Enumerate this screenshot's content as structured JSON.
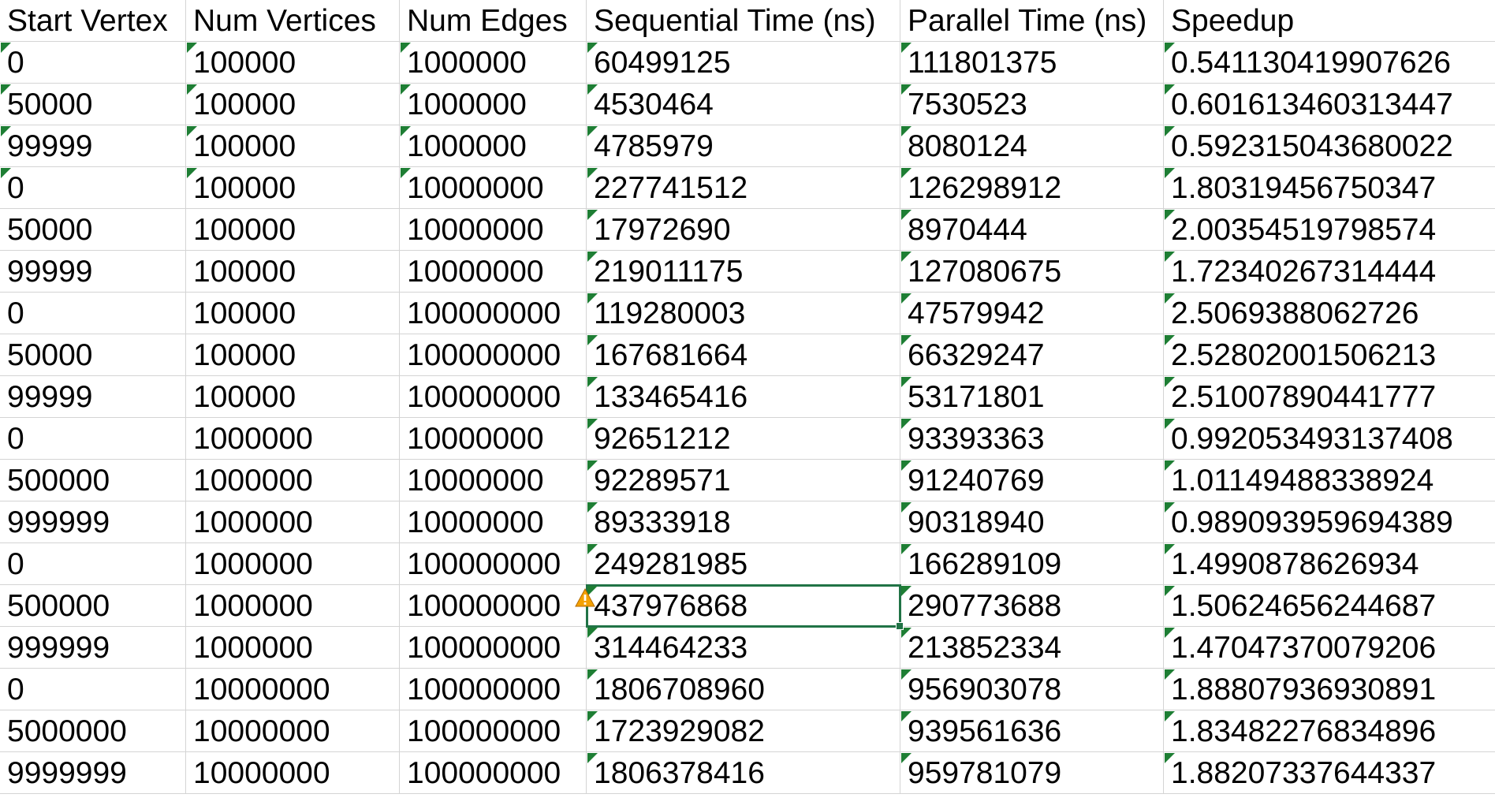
{
  "headers": [
    "Start Vertex",
    "Num Vertices",
    "Num Edges",
    "Sequential Time (ns)",
    "Parallel Time (ns)",
    "Speedup"
  ],
  "rows": [
    [
      "0",
      "100000",
      "1000000",
      "60499125",
      "111801375",
      "0.541130419907626"
    ],
    [
      "50000",
      "100000",
      "1000000",
      "4530464",
      "7530523",
      "0.601613460313447"
    ],
    [
      "99999",
      "100000",
      "1000000",
      "4785979",
      "8080124",
      "0.592315043680022"
    ],
    [
      "0",
      "100000",
      "10000000",
      "227741512",
      "126298912",
      "1.80319456750347"
    ],
    [
      "50000",
      "100000",
      "10000000",
      "17972690",
      "8970444",
      "2.00354519798574"
    ],
    [
      "99999",
      "100000",
      "10000000",
      "219011175",
      "127080675",
      "1.72340267314444"
    ],
    [
      "0",
      "100000",
      "100000000",
      "119280003",
      "47579942",
      "2.5069388062726"
    ],
    [
      "50000",
      "100000",
      "100000000",
      "167681664",
      "66329247",
      "2.52802001506213"
    ],
    [
      "99999",
      "100000",
      "100000000",
      "133465416",
      "53171801",
      "2.51007890441777"
    ],
    [
      "0",
      "1000000",
      "10000000",
      "92651212",
      "93393363",
      "0.992053493137408"
    ],
    [
      "500000",
      "1000000",
      "10000000",
      "92289571",
      "91240769",
      "1.01149488338924"
    ],
    [
      "999999",
      "1000000",
      "10000000",
      "89333918",
      "90318940",
      "0.989093959694389"
    ],
    [
      "0",
      "1000000",
      "100000000",
      "249281985",
      "166289109",
      "1.4990878626934"
    ],
    [
      "500000",
      "1000000",
      "100000000",
      "437976868",
      "290773688",
      "1.50624656244687"
    ],
    [
      "999999",
      "1000000",
      "100000000",
      "314464233",
      "213852334",
      "1.47047370079206"
    ],
    [
      "0",
      "10000000",
      "100000000",
      "1806708960",
      "956903078",
      "1.88807936930891"
    ],
    [
      "5000000",
      "10000000",
      "100000000",
      "1723929082",
      "939561636",
      "1.83482276834896"
    ],
    [
      "9999999",
      "10000000",
      "100000000",
      "1806378416",
      "959781079",
      "1.88207337644337"
    ]
  ],
  "colors": {
    "grid": "#d4d4d4",
    "error_triangle": "#1e7e34",
    "selection": "#217346",
    "warning": "#f4a100"
  },
  "icons": {
    "error_indicator": "green-triangle-icon",
    "warning": "warning-icon"
  },
  "selection": {
    "row": 13,
    "col": 3
  }
}
